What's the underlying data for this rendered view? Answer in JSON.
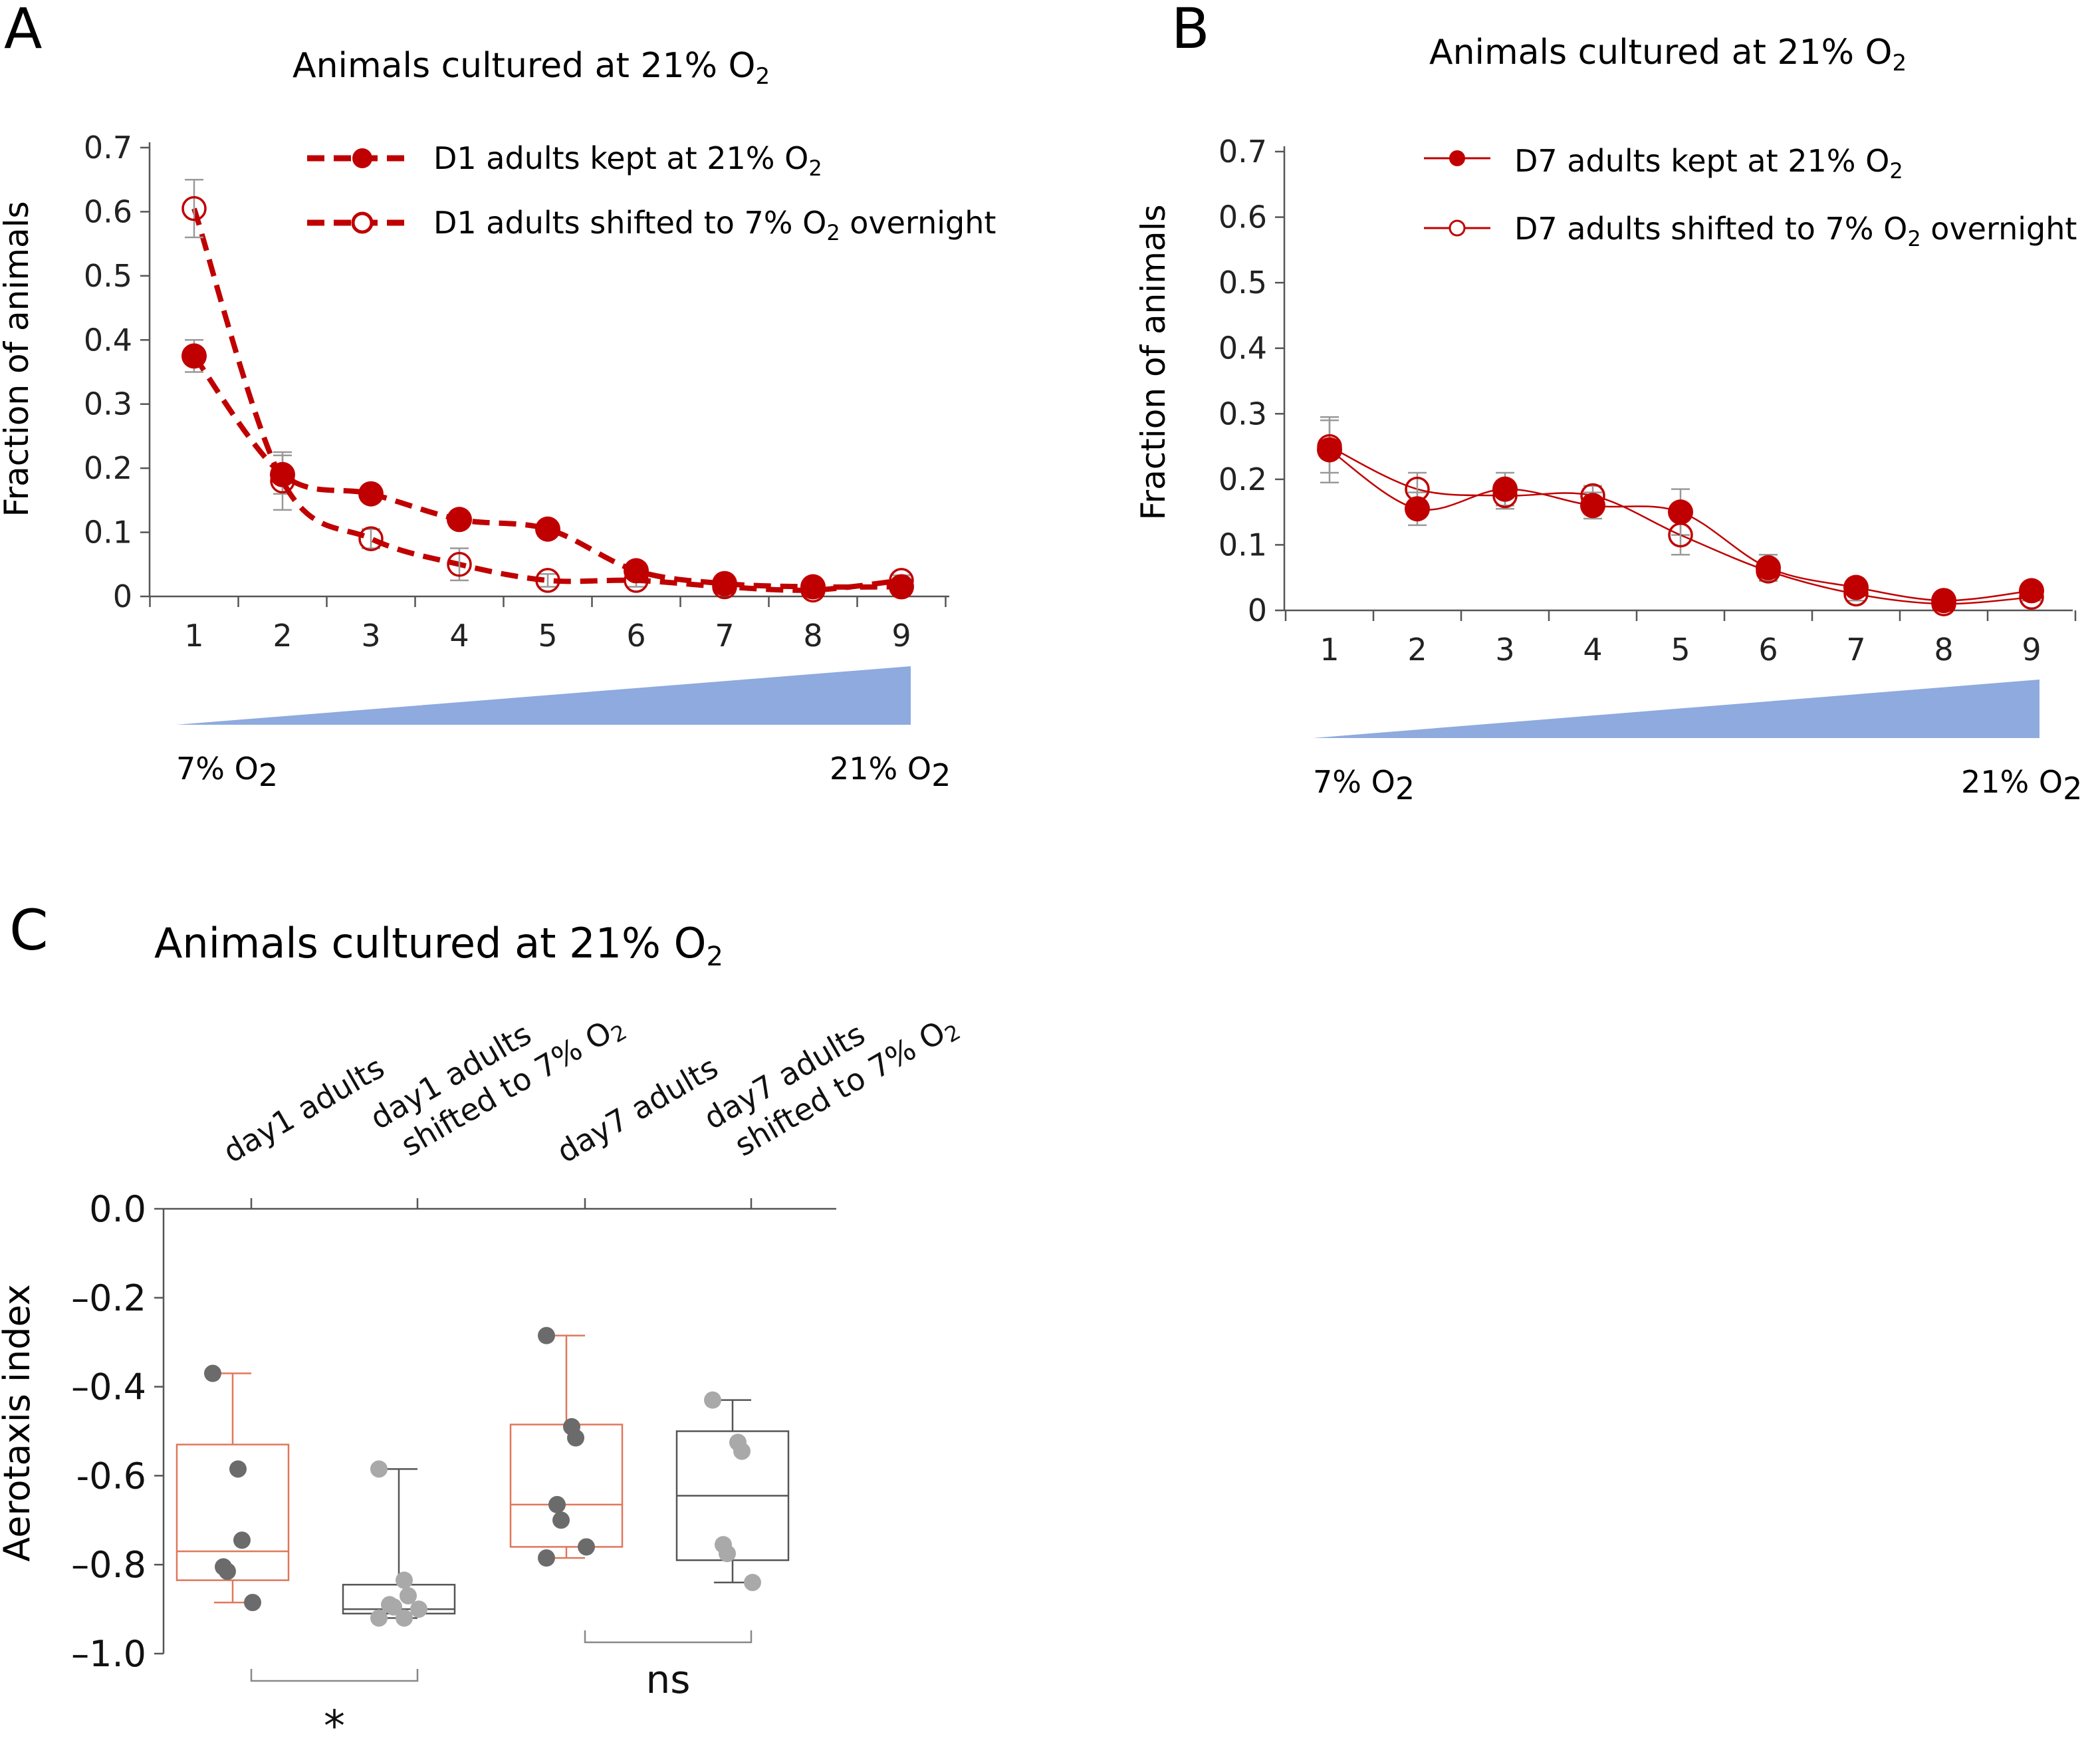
{
  "panels": {
    "A": {
      "letter": "A",
      "title": "Animals cultured at 21% O",
      "title_sub": "2"
    },
    "B": {
      "letter": "B",
      "title": "Animals cultured at 21% O",
      "title_sub": "2"
    },
    "C": {
      "letter": "C",
      "title": "Animals cultured at 21% O",
      "title_sub": "2"
    }
  },
  "gradient": {
    "low_label": "7% O",
    "high_label": "21% O",
    "sub": "2",
    "color": "#8eaadf"
  },
  "colors": {
    "red": "#c00000",
    "box_red": "#e0775a",
    "box_gray": "#555555",
    "dot_dark": "#6b6b6b",
    "dot_light": "#a9a9a9",
    "axis": "#555555"
  },
  "chart_data": [
    {
      "panel": "A",
      "type": "line",
      "title": "Animals cultured at 21% O2",
      "ylabel": "Fraction of animals",
      "xlabel": "",
      "x": [
        1,
        2,
        3,
        4,
        5,
        6,
        7,
        8,
        9
      ],
      "ylim": [
        0,
        0.7
      ],
      "yticks": [
        "0",
        "0.1",
        "0.2",
        "0.3",
        "0.4",
        "0.5",
        "0.6",
        "0.7"
      ],
      "line_style": "dashed",
      "series": [
        {
          "name": "D1 adults kept at 21% O",
          "name_sub": "2",
          "marker": "filled",
          "values": [
            0.375,
            0.19,
            0.16,
            0.12,
            0.105,
            0.04,
            0.02,
            0.015,
            0.015
          ],
          "err": [
            0.025,
            0.03,
            0.012,
            0.012,
            0.01,
            0.01,
            0.008,
            0.005,
            0.005
          ]
        },
        {
          "name": "D1 adults shifted to 7% O",
          "name_sub": "2",
          "name_suffix": " overnight",
          "marker": "open",
          "values": [
            0.605,
            0.18,
            0.09,
            0.05,
            0.025,
            0.025,
            0.015,
            0.01,
            0.025
          ],
          "err": [
            0.045,
            0.045,
            0.015,
            0.025,
            0.01,
            0.01,
            0.005,
            0.005,
            0.008
          ]
        }
      ]
    },
    {
      "panel": "B",
      "type": "line",
      "title": "Animals cultured at 21% O2",
      "ylabel": "Fraction of animals",
      "xlabel": "",
      "x": [
        1,
        2,
        3,
        4,
        5,
        6,
        7,
        8,
        9
      ],
      "ylim": [
        0,
        0.7
      ],
      "yticks": [
        "0",
        "0.1",
        "0.2",
        "0.3",
        "0.4",
        "0.5",
        "0.6",
        "0.7"
      ],
      "line_style": "solid",
      "series": [
        {
          "name": "D7 adults kept at 21% O",
          "name_sub": "2",
          "marker": "filled",
          "values": [
            0.245,
            0.155,
            0.185,
            0.16,
            0.15,
            0.065,
            0.035,
            0.015,
            0.03
          ],
          "err": [
            0.05,
            0.025,
            0.025,
            0.02,
            0.035,
            0.02,
            0.01,
            0.005,
            0.008
          ]
        },
        {
          "name": "D7 adults shifted to 7% O",
          "name_sub": "2",
          "name_suffix": " overnight",
          "marker": "open",
          "values": [
            0.25,
            0.185,
            0.175,
            0.175,
            0.115,
            0.06,
            0.025,
            0.01,
            0.02
          ],
          "err": [
            0.04,
            0.025,
            0.02,
            0.015,
            0.03,
            0.015,
            0.01,
            0.005,
            0.005
          ]
        }
      ]
    },
    {
      "panel": "C",
      "type": "box",
      "title": "Animals cultured at 21% O2",
      "ylabel": "Aerotaxis  index",
      "ylim": [
        -1.0,
        0.0
      ],
      "yticks": [
        "0.0",
        "–0.2",
        "–0.4",
        "-0.6",
        "–0.8",
        "–1.0"
      ],
      "ytick_values": [
        0.0,
        -0.2,
        -0.4,
        -0.6,
        -0.8,
        -1.0
      ],
      "categories": [
        {
          "line1": "day1 adults",
          "line2": ""
        },
        {
          "line1": "day1 adults",
          "line2": "shifted to 7% O",
          "sub": "2"
        },
        {
          "line1": "day7 adults",
          "line2": ""
        },
        {
          "line1": "day7 adults",
          "line2": "shifted to 7% O",
          "sub": "2"
        }
      ],
      "boxes": [
        {
          "whisker_low": -0.885,
          "q1": -0.835,
          "median": -0.77,
          "q3": -0.53,
          "whisker_high": -0.37,
          "color": "red",
          "points": [
            -0.37,
            -0.585,
            -0.745,
            -0.805,
            -0.815,
            -0.885
          ]
        },
        {
          "whisker_low": -0.92,
          "q1": -0.91,
          "median": -0.9,
          "q3": -0.845,
          "whisker_high": -0.585,
          "color": "gray",
          "points": [
            -0.585,
            -0.835,
            -0.87,
            -0.89,
            -0.895,
            -0.9,
            -0.92,
            -0.92
          ]
        },
        {
          "whisker_low": -0.785,
          "q1": -0.76,
          "median": -0.665,
          "q3": -0.485,
          "whisker_high": -0.285,
          "color": "red",
          "points": [
            -0.285,
            -0.49,
            -0.515,
            -0.665,
            -0.7,
            -0.76,
            -0.785
          ]
        },
        {
          "whisker_low": -0.84,
          "q1": -0.79,
          "median": -0.645,
          "q3": -0.5,
          "whisker_high": -0.43,
          "color": "gray",
          "points": [
            -0.43,
            -0.525,
            -0.545,
            -0.755,
            -0.775,
            -0.84
          ]
        }
      ],
      "significance": [
        {
          "label": "*",
          "from": 0,
          "to": 1
        },
        {
          "label": "ns",
          "from": 2,
          "to": 3
        }
      ]
    }
  ]
}
